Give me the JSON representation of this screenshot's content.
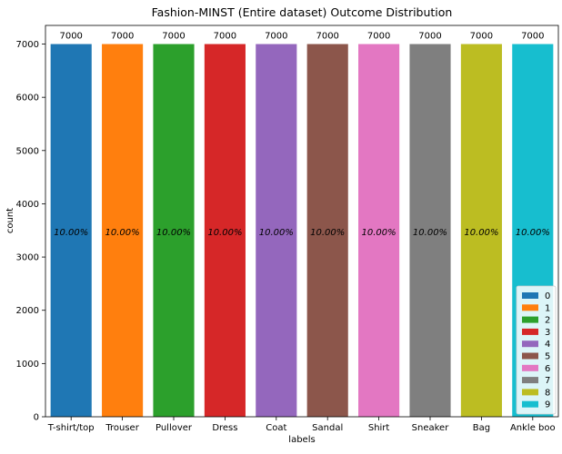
{
  "chart_data": {
    "type": "bar",
    "title": "Fashion-MINST (Entire dataset) Outcome Distribution",
    "xlabel": "labels",
    "ylabel": "count",
    "categories": [
      "T-shirt/top",
      "Trouser",
      "Pullover",
      "Dress",
      "Coat",
      "Sandal",
      "Shirt",
      "Sneaker",
      "Bag",
      "Ankle boo"
    ],
    "values": [
      7000,
      7000,
      7000,
      7000,
      7000,
      7000,
      7000,
      7000,
      7000,
      7000
    ],
    "value_labels": [
      "7000",
      "7000",
      "7000",
      "7000",
      "7000",
      "7000",
      "7000",
      "7000",
      "7000",
      "7000"
    ],
    "percent_labels": [
      "10.00%",
      "10.00%",
      "10.00%",
      "10.00%",
      "10.00%",
      "10.00%",
      "10.00%",
      "10.00%",
      "10.00%",
      "10.00%"
    ],
    "colors": [
      "#1f77b4",
      "#ff7f0e",
      "#2ca02c",
      "#d62728",
      "#9467bd",
      "#8c564b",
      "#e377c2",
      "#7f7f7f",
      "#bcbd22",
      "#17becf"
    ],
    "ylim": [
      0,
      7350
    ],
    "yticks": [
      0,
      1000,
      2000,
      3000,
      4000,
      5000,
      6000,
      7000
    ],
    "grid": false,
    "legend": {
      "placement": "lower-right",
      "entries": [
        "0",
        "1",
        "2",
        "3",
        "4",
        "5",
        "6",
        "7",
        "8",
        "9"
      ]
    }
  }
}
